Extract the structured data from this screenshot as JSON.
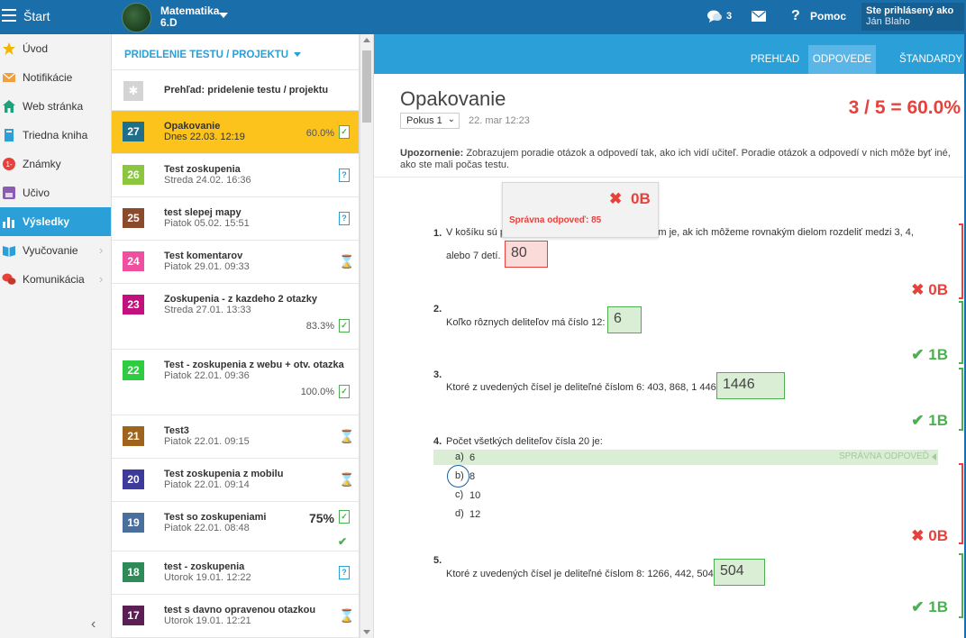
{
  "topbar": {
    "start_label": "Štart",
    "class_name": "Matematika",
    "class_group": "6.D",
    "chat_count": "3",
    "help_label": "Pomoc",
    "logged_in_label": "Ste prihlásený ako",
    "user_name": "Ján Blaho",
    "bar_color": "#1a6eaa"
  },
  "sidebar": {
    "items": [
      {
        "label": "Úvod",
        "icon": "star-icon",
        "color": "#f4b400"
      },
      {
        "label": "Notifikácie",
        "icon": "envelope-icon",
        "color": "#f0a040"
      },
      {
        "label": "Web stránka",
        "icon": "home-icon",
        "color": "#1ea27a"
      },
      {
        "label": "Triedna kniha",
        "icon": "book-icon",
        "color": "#2a9fd8"
      },
      {
        "label": "Známky",
        "icon": "grade-icon",
        "color": "#e8413c"
      },
      {
        "label": "Učivo",
        "icon": "lesson-icon",
        "color": "#8b5cb1"
      },
      {
        "label": "Výsledky",
        "icon": "bar-chart-icon",
        "color": "#ffffff"
      },
      {
        "label": "Vyučovanie",
        "icon": "open-book-icon",
        "color": "#2a9fd8"
      },
      {
        "label": "Komunikácia",
        "icon": "chat-bubbles-icon",
        "color": "#e8413c"
      }
    ],
    "active_index": 6
  },
  "middle": {
    "header": "PRIDELENIE TESTU / PROJEKTU",
    "overview_label": "Prehľad: pridelenie testu / projektu",
    "tests": [
      {
        "num": "27",
        "name": "Opakovanie",
        "date": "Dnes 22.03. 12:19",
        "pct": "60.0%",
        "status": "done",
        "color": "#1f6f8b",
        "active": true
      },
      {
        "num": "26",
        "name": "Test zoskupenia",
        "date": "Streda 24.02. 16:36",
        "pct": "",
        "status": "q",
        "color": "#8cc63e"
      },
      {
        "num": "25",
        "name": "test slepej mapy",
        "date": "Piatok 05.02. 15:51",
        "pct": "",
        "status": "q",
        "color": "#8b4a2b"
      },
      {
        "num": "24",
        "name": "Test komentarov",
        "date": "Piatok 29.01. 09:33",
        "pct": "",
        "status": "hour",
        "color": "#f04fa0"
      },
      {
        "num": "23",
        "name": "Zoskupenia - z kazdeho 2 otazky",
        "date": "Streda 27.01. 13:33",
        "pct": "83.3%",
        "status": "done",
        "color": "#c2107c"
      },
      {
        "num": "22",
        "name": "Test - zoskupenia z webu + otv. otazka",
        "date": "Piatok 22.01. 09:36",
        "pct": "100.0%",
        "status": "done",
        "color": "#2ecc40"
      },
      {
        "num": "21",
        "name": "Test3",
        "date": "Piatok 22.01. 09:15",
        "pct": "",
        "status": "hour",
        "color": "#a0631b"
      },
      {
        "num": "20",
        "name": "Test zoskupenia z mobilu",
        "date": "Piatok 22.01. 09:14",
        "pct": "",
        "status": "hour",
        "color": "#3e3a9b"
      },
      {
        "num": "19",
        "name": "Test so zoskupeniami",
        "date": "Piatok 22.01. 08:48",
        "pct": "75%",
        "status": "done-check",
        "color": "#4a6f9a"
      },
      {
        "num": "18",
        "name": "test - zoskupenia",
        "date": "Utorok 19.01. 12:22",
        "pct": "",
        "status": "q",
        "color": "#2e8b57"
      },
      {
        "num": "17",
        "name": "test s davno opravenou otazkou",
        "date": "Utorok 19.01. 12:21",
        "pct": "",
        "status": "hour",
        "color": "#5b1f56"
      }
    ]
  },
  "right": {
    "tabs": [
      "PREHĽAD",
      "ODPOVEDE",
      "ŠTANDARDY"
    ],
    "active_tab": 1,
    "title": "Opakovanie",
    "score": "3 / 5 = 60.0%",
    "attempt": "Pokus 1",
    "attempt_date": "22. mar 12:23",
    "warning_bold": "Upozornenie:",
    "warning_text": " Zobrazujem poradie otázok a odpovedí tak, ako ich vidí učiteľ. Poradie otázok a odpovedí v nich môže byť iné, ako ste mali počas testu.",
    "popup": {
      "points": "0B",
      "correct": "Správna odpoveď: 85"
    },
    "questions": [
      {
        "num": "1.",
        "text_a": "V košíku sú p",
        "text_b": "m tam je, ak ich môžeme rovnakým dielom rozdeliť medzi 3, 4,",
        "text_c": "alebo 7 detí.",
        "answer": "80",
        "points": "0B",
        "result": "wrong"
      },
      {
        "num": "2.",
        "text": "Koľko rôznych deliteľov má číslo 12:",
        "answer": "6",
        "points": "1B",
        "result": "right"
      },
      {
        "num": "3.",
        "text": "Ktoré z uvedených čísel je deliteľné číslom 6: 403, 868, 1 446",
        "answer": "1446",
        "points": "1B",
        "result": "right"
      },
      {
        "num": "4.",
        "text": "Počet všetkých deliteľov čísla 20 je:",
        "options": [
          {
            "letter": "a)",
            "value": "6"
          },
          {
            "letter": "b)",
            "value": "8"
          },
          {
            "letter": "c)",
            "value": "10"
          },
          {
            "letter": "d)",
            "value": "12"
          }
        ],
        "correct_tag": "SPRÁVNA ODPOVEĎ",
        "points": "0B",
        "result": "wrong"
      },
      {
        "num": "5.",
        "text": "Ktoré z uvedených čísel je deliteľné číslom 8: 1266, 442, 504",
        "answer": "504",
        "points": "1B",
        "result": "right"
      }
    ],
    "colors": {
      "wrong": "#e8413c",
      "right": "#4caf50",
      "accent": "#2a9fd8"
    }
  }
}
